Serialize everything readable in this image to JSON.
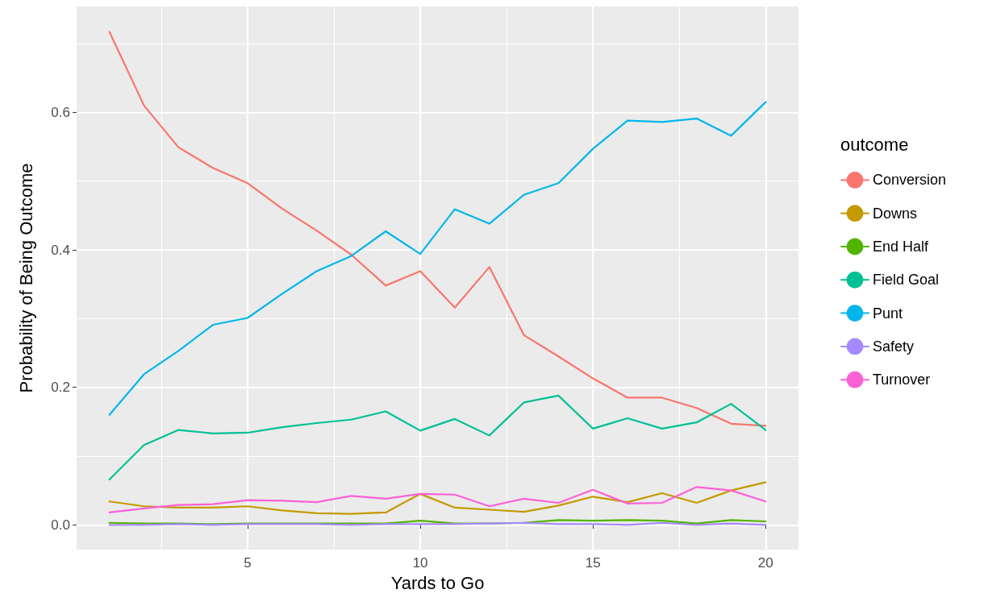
{
  "chart_data": {
    "type": "line",
    "xlabel": "Yards to Go",
    "ylabel": "Probability of Being Outcome",
    "legend_title": "outcome",
    "x": [
      1,
      2,
      3,
      4,
      5,
      6,
      7,
      8,
      9,
      10,
      11,
      12,
      13,
      14,
      15,
      16,
      17,
      18,
      19,
      20
    ],
    "series": [
      {
        "name": "Conversion",
        "color": "#f8766d",
        "values": [
          0.717,
          0.61,
          0.549,
          0.519,
          0.497,
          0.46,
          0.428,
          0.393,
          0.348,
          0.369,
          0.316,
          0.375,
          0.276,
          0.245,
          0.213,
          0.185,
          0.185,
          0.17,
          0.147,
          0.144
        ]
      },
      {
        "name": "Downs",
        "color": "#c49a00",
        "values": [
          0.034,
          0.027,
          0.025,
          0.025,
          0.027,
          0.021,
          0.017,
          0.016,
          0.018,
          0.045,
          0.025,
          0.022,
          0.019,
          0.028,
          0.041,
          0.033,
          0.046,
          0.032,
          0.05,
          0.062
        ]
      },
      {
        "name": "End Half",
        "color": "#53b400",
        "values": [
          0.003,
          0.002,
          0.002,
          0.001,
          0.002,
          0.002,
          0.002,
          0.002,
          0.002,
          0.006,
          0.002,
          0.002,
          0.003,
          0.007,
          0.006,
          0.007,
          0.006,
          0.002,
          0.007,
          0.005
        ]
      },
      {
        "name": "Field Goal",
        "color": "#00c094",
        "values": [
          0.066,
          0.116,
          0.138,
          0.133,
          0.134,
          0.142,
          0.148,
          0.153,
          0.165,
          0.137,
          0.154,
          0.13,
          0.178,
          0.188,
          0.14,
          0.155,
          0.14,
          0.149,
          0.176,
          0.138
        ]
      },
      {
        "name": "Punt",
        "color": "#00b6eb",
        "values": [
          0.16,
          0.219,
          0.253,
          0.291,
          0.301,
          0.336,
          0.369,
          0.391,
          0.427,
          0.394,
          0.459,
          0.438,
          0.48,
          0.497,
          0.547,
          0.588,
          0.586,
          0.591,
          0.566,
          0.615
        ]
      },
      {
        "name": "Safety",
        "color": "#a58aff",
        "values": [
          0.0,
          0.0,
          0.001,
          0.0,
          0.001,
          0.001,
          0.001,
          0.0,
          0.001,
          0.001,
          0.001,
          0.002,
          0.003,
          0.001,
          0.001,
          0.0,
          0.003,
          0.0,
          0.002,
          0.0
        ]
      },
      {
        "name": "Turnover",
        "color": "#fb61d7",
        "values": [
          0.018,
          0.024,
          0.029,
          0.03,
          0.036,
          0.035,
          0.033,
          0.042,
          0.038,
          0.045,
          0.044,
          0.027,
          0.038,
          0.032,
          0.051,
          0.031,
          0.032,
          0.055,
          0.05,
          0.034
        ]
      }
    ],
    "xlim": [
      0.05,
      20.95
    ],
    "xticks": [
      5,
      10,
      15,
      20
    ],
    "ylim": [
      -0.036,
      0.754
    ],
    "yticks": [
      {
        "value": 0,
        "label": "0.0"
      },
      {
        "value": 0.2,
        "label": "0.2"
      },
      {
        "value": 0.4,
        "label": "0.4"
      },
      {
        "value": 0.6,
        "label": "0.6"
      }
    ],
    "grid": true,
    "legend": "right",
    "marker": "none",
    "line_style": "solid"
  }
}
